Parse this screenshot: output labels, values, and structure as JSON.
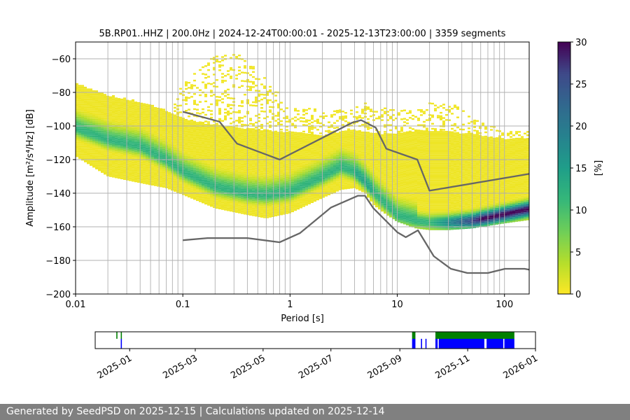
{
  "title": "5B.RP01..HHZ | 200.0Hz | 2024-12-24T00:00:01 - 2025-12-13T23:00:00 | 3359 segments",
  "footer": "Generated by SeedPSD on 2025-12-15 | Calculations updated on 2025-12-14",
  "colors": {
    "noise_model": "#666666",
    "availability_top": "#008000",
    "availability_bottom": "#0000ff",
    "grid": "#b0b0b0"
  },
  "chart_data": [
    {
      "type": "heatmap",
      "colormap": "viridis_r",
      "xlabel": "Period [s]",
      "ylabel": "Amplitude [m²/s⁴/Hz] [dB]",
      "xscale": "log",
      "xlim": [
        0.01,
        170
      ],
      "ylim": [
        -200,
        -50
      ],
      "x_tick_labels": [
        "0.01",
        "0.1",
        "1",
        "10",
        "100"
      ],
      "x_tick_values": [
        0.01,
        0.1,
        1,
        10,
        100
      ],
      "y_tick_labels": [
        "−200",
        "−180",
        "−160",
        "−140",
        "−120",
        "−100",
        "−80",
        "−60"
      ],
      "y_tick_values": [
        -200,
        -180,
        -160,
        -140,
        -120,
        -100,
        -80,
        -60
      ],
      "grid": true,
      "colorbar": {
        "label": "[%]",
        "range": [
          0,
          30
        ],
        "tick_labels": [
          "0",
          "5",
          "10",
          "15",
          "20",
          "25",
          "30"
        ],
        "tick_values": [
          0,
          5,
          10,
          15,
          20,
          25,
          30
        ]
      },
      "mode_curve": {
        "period": [
          0.01,
          0.02,
          0.04,
          0.07,
          0.1,
          0.2,
          0.4,
          0.6,
          1,
          2,
          3,
          4,
          5,
          6,
          8,
          10,
          15,
          20,
          30,
          50,
          100,
          170
        ],
        "db": [
          -102,
          -109,
          -113,
          -121,
          -128,
          -137,
          -141,
          -142,
          -140,
          -131,
          -125,
          -128,
          -134,
          -140,
          -148,
          -154,
          -157,
          -158,
          -158,
          -157,
          -153,
          -150
        ]
      },
      "spread_upper": {
        "period": [
          0.01,
          0.02,
          0.04,
          0.07,
          0.1,
          0.2,
          0.4,
          0.6,
          1,
          2,
          3,
          4,
          5,
          6,
          8,
          10,
          15,
          20,
          30,
          50,
          100,
          170
        ],
        "db": [
          -75,
          -82,
          -86,
          -91,
          -96,
          -100,
          -102,
          -103,
          -104,
          -106,
          -104,
          -103,
          -104,
          -105,
          -105,
          -105,
          -103,
          -103,
          -104,
          -105,
          -108,
          -108
        ]
      },
      "spread_lower": {
        "period": [
          0.01,
          0.02,
          0.04,
          0.07,
          0.1,
          0.2,
          0.4,
          0.6,
          1,
          2,
          3,
          4,
          5,
          6,
          8,
          10,
          15,
          20,
          30,
          50,
          100,
          170
        ],
        "db": [
          -118,
          -130,
          -134,
          -137,
          -141,
          -149,
          -153,
          -155,
          -152,
          -143,
          -138,
          -137,
          -140,
          -147,
          -153,
          -157,
          -161,
          -162,
          -162,
          -161,
          -158,
          -156
        ]
      },
      "outlier_upper": {
        "period": [
          0.08,
          0.1,
          0.15,
          0.2,
          0.3,
          0.4,
          0.6,
          0.8,
          1,
          1.5,
          2,
          3,
          4,
          5,
          6,
          8,
          10,
          15,
          20,
          30,
          40,
          60,
          100
        ],
        "db": [
          -88,
          -75,
          -66,
          -58,
          -56,
          -62,
          -72,
          -80,
          -90,
          -90,
          -91,
          -91,
          -90,
          -86,
          -92,
          -89,
          -90,
          -91,
          -87,
          -86,
          -90,
          -98,
          -103
        ]
      },
      "noise_model_high": {
        "period": [
          0.1,
          0.22,
          0.32,
          0.8,
          3.8,
          4.6,
          6.3,
          7.9,
          15.4,
          20,
          170
        ],
        "db": [
          -91.5,
          -97.4,
          -110.5,
          -120,
          -98,
          -96.5,
          -101,
          -113.5,
          -120,
          -138.5,
          -128.5
        ]
      },
      "noise_model_low": {
        "period": [
          0.1,
          0.17,
          0.4,
          0.8,
          1.24,
          2.4,
          4.3,
          5,
          6,
          10,
          12,
          15.6,
          21.9,
          31.6,
          45,
          70,
          101,
          154,
          170
        ],
        "db": [
          -168,
          -166.7,
          -166.7,
          -169.2,
          -163.7,
          -148.6,
          -141.5,
          -141.5,
          -149,
          -163.2,
          -166.2,
          -162.1,
          -177.5,
          -185,
          -187.5,
          -187.5,
          -185,
          -185,
          -185.5
        ]
      }
    },
    {
      "type": "bar",
      "name": "data availability",
      "xscale": "date",
      "xlim": [
        "2024-12-01",
        "2026-01-01"
      ],
      "x_tick_labels": [
        "2025-01",
        "2025-03",
        "2025-05",
        "2025-07",
        "2025-09",
        "2025-11",
        "2026-01"
      ],
      "x_tick_values": [
        "2025-01-01",
        "2025-03-01",
        "2025-05-01",
        "2025-07-01",
        "2025-09-01",
        "2025-11-01",
        "2026-01-01"
      ],
      "green_spans": [
        [
          "2024-12-20",
          "2024-12-21"
        ],
        [
          "2024-12-24",
          "2024-12-25"
        ],
        [
          "2025-09-12",
          "2025-09-15"
        ],
        [
          "2025-10-03",
          "2025-12-13"
        ]
      ],
      "blue_spans": [
        [
          "2024-12-24",
          "2024-12-25"
        ],
        [
          "2025-09-12",
          "2025-09-15"
        ],
        [
          "2025-09-20",
          "2025-09-21"
        ],
        [
          "2025-09-24",
          "2025-09-25"
        ],
        [
          "2025-10-03",
          "2025-10-05"
        ],
        [
          "2025-10-06",
          "2025-11-16"
        ],
        [
          "2025-11-18",
          "2025-12-03"
        ],
        [
          "2025-12-04",
          "2025-12-13"
        ]
      ]
    }
  ]
}
